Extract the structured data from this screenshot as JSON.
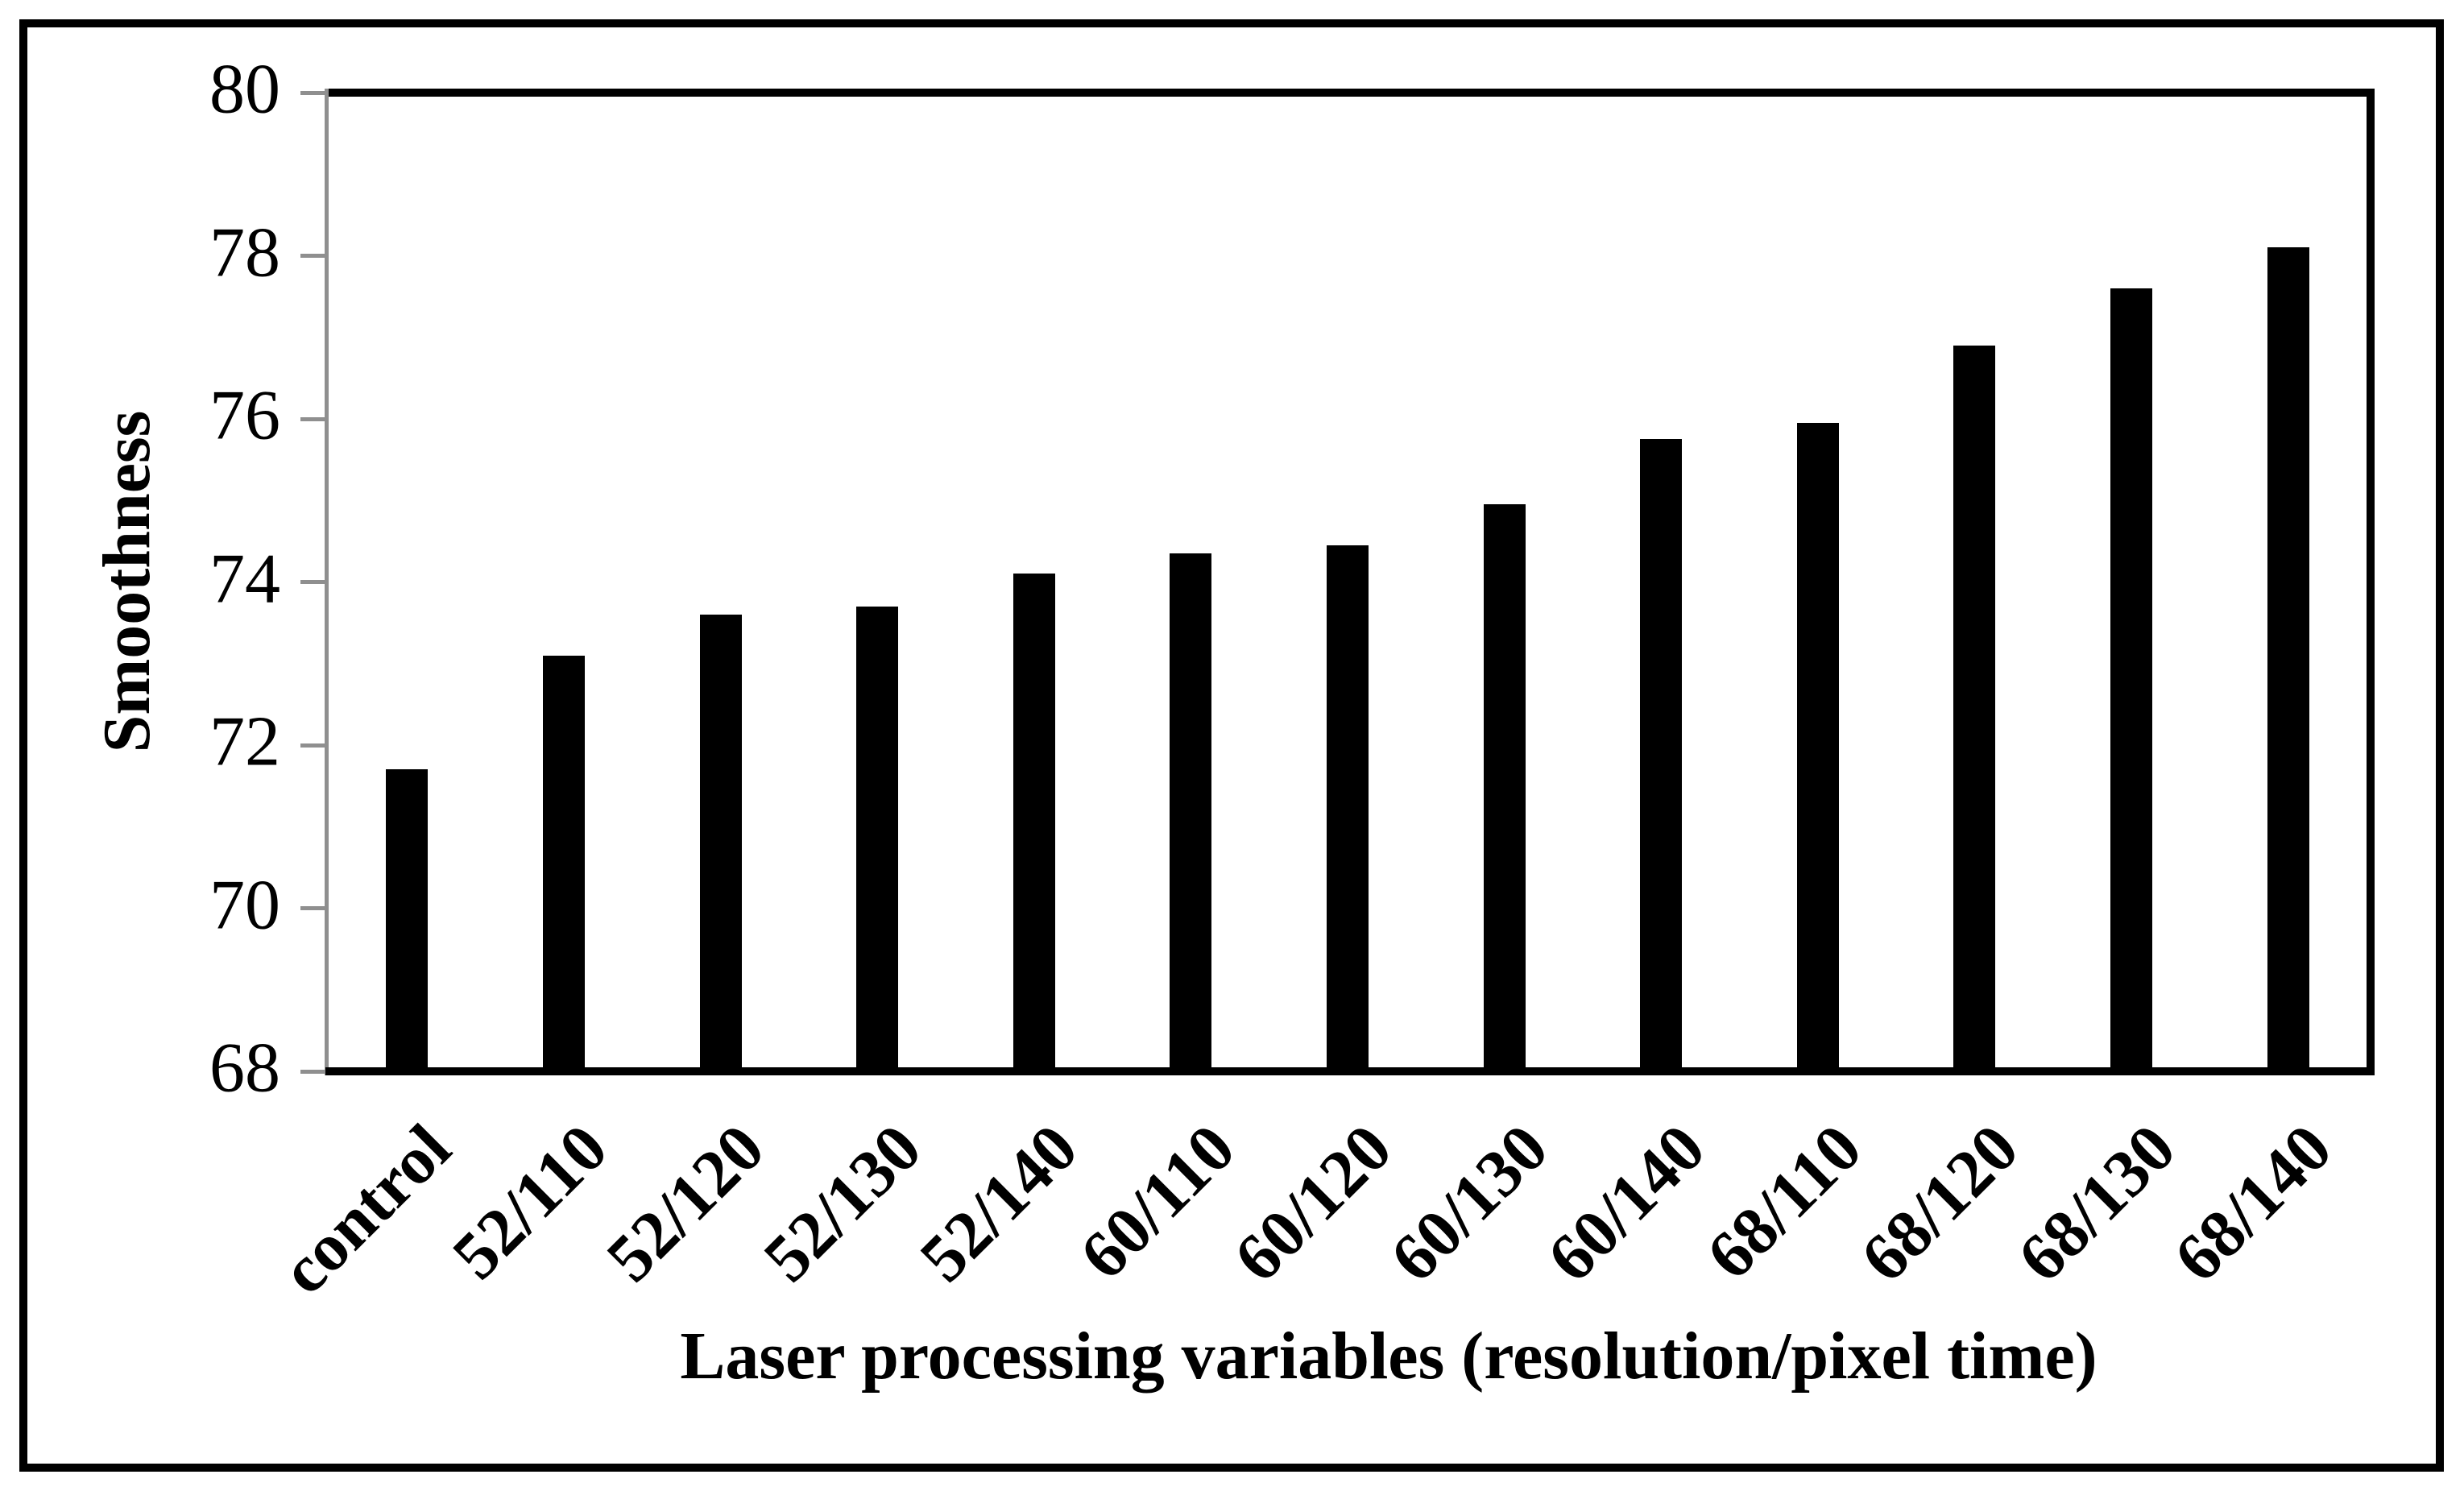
{
  "chart_data": {
    "type": "bar",
    "title": "",
    "categories": [
      "control",
      "52/110",
      "52/120",
      "52/130",
      "52/140",
      "60/110",
      "60/120",
      "60/130",
      "60/140",
      "68/110",
      "68/120",
      "68/130",
      "68/140"
    ],
    "values": [
      71.7,
      73.1,
      73.6,
      73.7,
      74.1,
      74.35,
      74.45,
      74.95,
      75.75,
      75.95,
      76.9,
      77.6,
      78.1
    ],
    "xlabel": "Laser processing variables (resolution/pixel time)",
    "ylabel": "Smoothness",
    "ylim": [
      68,
      80
    ],
    "yticks": [
      68,
      70,
      72,
      74,
      76,
      78,
      80
    ],
    "grid": false,
    "legend": false,
    "bar_color": "#000000",
    "axis_color": "#8f8f8f",
    "border_color": "#000000",
    "background_color": "#ffffff"
  }
}
